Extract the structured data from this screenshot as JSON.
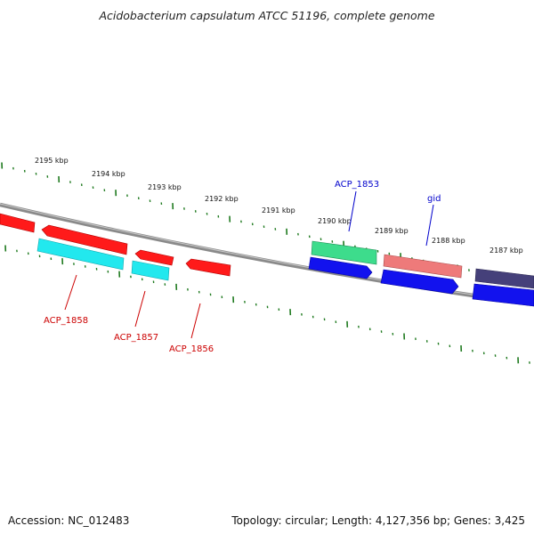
{
  "title": "Acidobacterium capsulatum ATCC 51196, complete genome",
  "footer": {
    "accession": "Accession: NC_012483",
    "summary": "Topology: circular; Length: 4,127,356 bp; Genes: 3,425"
  },
  "colors": {
    "backbone": "#8a8a8a",
    "tick": "#1f7a1f",
    "red_gene": "#ff1a1a",
    "cyan_gene": "#22e8ee",
    "blue_gene": "#1212ee",
    "green_gene": "#3ddc8c",
    "salmon_gene": "#ee7a7a",
    "navy_gene": "#45407a",
    "red_label": "#cc0000",
    "blue_label": "#0000cc"
  },
  "scale_labels": [
    "2195 kbp",
    "2194 kbp",
    "2193 kbp",
    "2192 kbp",
    "2191 kbp",
    "2190 kbp",
    "2189 kbp",
    "2188 kbp",
    "2187 kbp"
  ],
  "gene_labels": {
    "acp_1858": "ACP_1858",
    "acp_1857": "ACP_1857",
    "acp_1856": "ACP_1856",
    "acp_1853": "ACP_1853",
    "gid": "gid"
  }
}
